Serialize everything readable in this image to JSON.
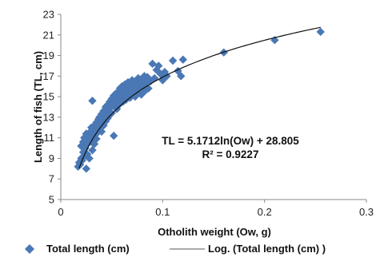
{
  "chart_data": {
    "type": "scatter",
    "title": "",
    "xlabel": "Otholith weight (Ow, g)",
    "ylabel": "Length of fish (TL, cm)",
    "xlim": [
      0,
      0.3
    ],
    "ylim": [
      5,
      23
    ],
    "x_ticks": [
      "0",
      "0.1",
      "0.2",
      "0.3"
    ],
    "y_ticks": [
      "5",
      "7",
      "9",
      "11",
      "13",
      "15",
      "17",
      "19",
      "21",
      "23"
    ],
    "grid": false,
    "legend_position": "bottom",
    "annotations": [
      "TL = 5.1712ln(Ow) + 28.805",
      "R² = 0.9227"
    ],
    "series": [
      {
        "name": "Total length (cm)",
        "marker": "diamond",
        "color": "#4a78b5",
        "points": [
          [
            0.017,
            8.2
          ],
          [
            0.018,
            8.6
          ],
          [
            0.019,
            8.4
          ],
          [
            0.02,
            9.0
          ],
          [
            0.02,
            10.2
          ],
          [
            0.021,
            8.8
          ],
          [
            0.022,
            10.6
          ],
          [
            0.022,
            9.6
          ],
          [
            0.023,
            11.0
          ],
          [
            0.023,
            9.2
          ],
          [
            0.024,
            10.0
          ],
          [
            0.025,
            8.0
          ],
          [
            0.025,
            11.4
          ],
          [
            0.026,
            10.4
          ],
          [
            0.026,
            9.4
          ],
          [
            0.027,
            11.2
          ],
          [
            0.028,
            10.8
          ],
          [
            0.028,
            9.0
          ],
          [
            0.029,
            11.6
          ],
          [
            0.03,
            10.6
          ],
          [
            0.03,
            12.0
          ],
          [
            0.031,
            9.8
          ],
          [
            0.031,
            14.6
          ],
          [
            0.032,
            11.2
          ],
          [
            0.033,
            10.4
          ],
          [
            0.033,
            12.2
          ],
          [
            0.034,
            11.8
          ],
          [
            0.035,
            10.9
          ],
          [
            0.035,
            12.5
          ],
          [
            0.036,
            11.5
          ],
          [
            0.037,
            12.8
          ],
          [
            0.037,
            12.0
          ],
          [
            0.038,
            13.0
          ],
          [
            0.039,
            12.4
          ],
          [
            0.04,
            11.6
          ],
          [
            0.04,
            13.3
          ],
          [
            0.041,
            12.7
          ],
          [
            0.042,
            13.6
          ],
          [
            0.042,
            12.2
          ],
          [
            0.043,
            13.1
          ],
          [
            0.044,
            14.0
          ],
          [
            0.044,
            12.6
          ],
          [
            0.045,
            13.5
          ],
          [
            0.046,
            14.2
          ],
          [
            0.046,
            12.9
          ],
          [
            0.047,
            13.8
          ],
          [
            0.048,
            14.5
          ],
          [
            0.048,
            13.2
          ],
          [
            0.049,
            14.1
          ],
          [
            0.05,
            14.8
          ],
          [
            0.05,
            13.4
          ],
          [
            0.051,
            14.4
          ],
          [
            0.052,
            15.1
          ],
          [
            0.052,
            11.2
          ],
          [
            0.053,
            14.0
          ],
          [
            0.054,
            15.3
          ],
          [
            0.054,
            14.6
          ],
          [
            0.055,
            13.8
          ],
          [
            0.056,
            15.0
          ],
          [
            0.057,
            15.5
          ],
          [
            0.057,
            14.2
          ],
          [
            0.058,
            15.8
          ],
          [
            0.059,
            14.8
          ],
          [
            0.06,
            15.2
          ],
          [
            0.06,
            16.0
          ],
          [
            0.061,
            14.5
          ],
          [
            0.062,
            15.6
          ],
          [
            0.063,
            15.0
          ],
          [
            0.063,
            16.2
          ],
          [
            0.064,
            14.7
          ],
          [
            0.065,
            15.4
          ],
          [
            0.066,
            16.4
          ],
          [
            0.066,
            15.1
          ],
          [
            0.067,
            15.8
          ],
          [
            0.068,
            14.9
          ],
          [
            0.069,
            16.0
          ],
          [
            0.07,
            15.3
          ],
          [
            0.07,
            16.6
          ],
          [
            0.071,
            15.7
          ],
          [
            0.072,
            16.1
          ],
          [
            0.073,
            15.0
          ],
          [
            0.074,
            16.4
          ],
          [
            0.075,
            15.5
          ],
          [
            0.076,
            16.8
          ],
          [
            0.077,
            15.9
          ],
          [
            0.078,
            16.3
          ],
          [
            0.079,
            15.2
          ],
          [
            0.08,
            16.6
          ],
          [
            0.081,
            16.0
          ],
          [
            0.082,
            17.0
          ],
          [
            0.083,
            15.6
          ],
          [
            0.084,
            16.4
          ],
          [
            0.085,
            16.9
          ],
          [
            0.086,
            15.8
          ],
          [
            0.088,
            16.5
          ],
          [
            0.09,
            18.2
          ],
          [
            0.092,
            16.8
          ],
          [
            0.094,
            17.6
          ],
          [
            0.096,
            18.0
          ],
          [
            0.098,
            17.2
          ],
          [
            0.1,
            16.6
          ],
          [
            0.102,
            17.4
          ],
          [
            0.104,
            17.0
          ],
          [
            0.11,
            18.5
          ],
          [
            0.115,
            17.5
          ],
          [
            0.118,
            17.0
          ],
          [
            0.12,
            18.6
          ],
          [
            0.16,
            19.3
          ],
          [
            0.21,
            20.5
          ],
          [
            0.255,
            21.3
          ]
        ]
      },
      {
        "name": "Log. (Total length (cm) )",
        "type": "line",
        "color": "#111111",
        "equation": {
          "a": 5.1712,
          "b": 28.805,
          "form": "a*ln(x)+b"
        },
        "x_range": [
          0.018,
          0.255
        ]
      }
    ]
  }
}
